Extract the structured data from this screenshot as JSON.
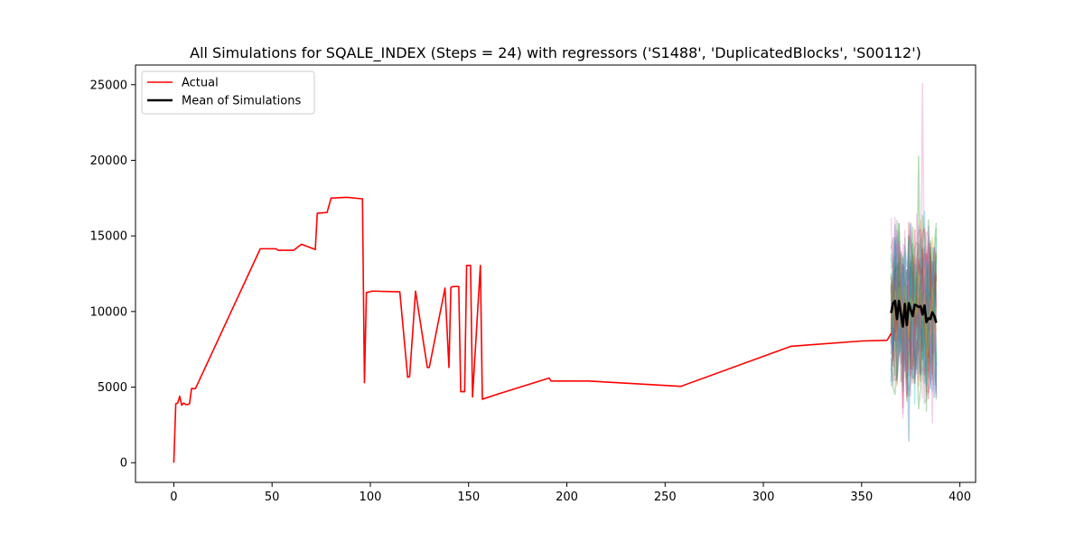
{
  "chart_data": {
    "type": "line",
    "title": "All Simulations for SQALE_INDEX (Steps = 24) with regressors ('S1488', 'DuplicatedBlocks', 'S00112')",
    "xlabel": "",
    "ylabel": "",
    "xlim": [
      -19.5,
      408
    ],
    "ylim": [
      -1300,
      26300
    ],
    "xticks": [
      0,
      50,
      100,
      150,
      200,
      250,
      300,
      350,
      400
    ],
    "yticks": [
      0,
      5000,
      10000,
      15000,
      20000,
      25000
    ],
    "grid": false,
    "legend": {
      "placement": "top-left",
      "entries": [
        {
          "label": "Actual",
          "color": "#ff0000"
        },
        {
          "label": "Mean of Simulations",
          "color": "#000000"
        }
      ]
    },
    "series": [
      {
        "name": "Actual",
        "color": "#ff0000",
        "x": [
          0,
          1,
          2,
          3,
          4,
          5,
          6,
          7,
          8,
          9,
          11,
          44,
          52,
          53,
          55,
          61,
          65,
          72,
          73,
          78,
          80,
          88,
          96,
          97,
          98,
          101,
          115,
          119,
          120,
          123,
          129,
          130,
          138,
          140,
          141,
          142,
          145,
          146,
          148,
          149,
          151,
          152,
          156,
          157,
          164,
          191,
          192,
          193,
          211,
          258,
          314,
          350,
          363,
          365
        ],
        "y": [
          0,
          3900,
          3950,
          4400,
          3800,
          3950,
          3850,
          3850,
          3900,
          4900,
          4900,
          14150,
          14150,
          14050,
          14050,
          14050,
          14450,
          14100,
          16500,
          16550,
          17500,
          17550,
          17450,
          5300,
          11250,
          11350,
          11300,
          5650,
          5700,
          11350,
          6300,
          6300,
          11550,
          6300,
          11600,
          11650,
          11650,
          4700,
          4700,
          13050,
          13050,
          4350,
          13050,
          4200,
          4500,
          5600,
          5400,
          5400,
          5400,
          5050,
          7700,
          8050,
          8100,
          8550
        ]
      },
      {
        "name": "Mean of Simulations",
        "color": "#000000",
        "x": [
          365,
          366,
          367,
          368,
          369,
          370,
          371,
          372,
          373,
          374,
          375,
          376,
          377,
          378,
          379,
          380,
          381,
          382,
          383,
          384,
          385,
          386,
          387,
          388
        ],
        "y": [
          9900,
          10550,
          10700,
          9500,
          10700,
          9850,
          9000,
          10500,
          9100,
          10550,
          10100,
          9700,
          10450,
          10400,
          10300,
          10350,
          9800,
          10400,
          9300,
          9550,
          9500,
          9950,
          9700,
          9250
        ]
      }
    ],
    "simulation_band": {
      "x_start": 365,
      "x_end": 388,
      "min": 1400,
      "max": 25100,
      "colors": [
        "#1f77b4",
        "#ff7f0e",
        "#2ca02c",
        "#d62728",
        "#9467bd",
        "#8c564b",
        "#e377c2",
        "#7f7f7f",
        "#bcbd22",
        "#17becf"
      ]
    }
  }
}
